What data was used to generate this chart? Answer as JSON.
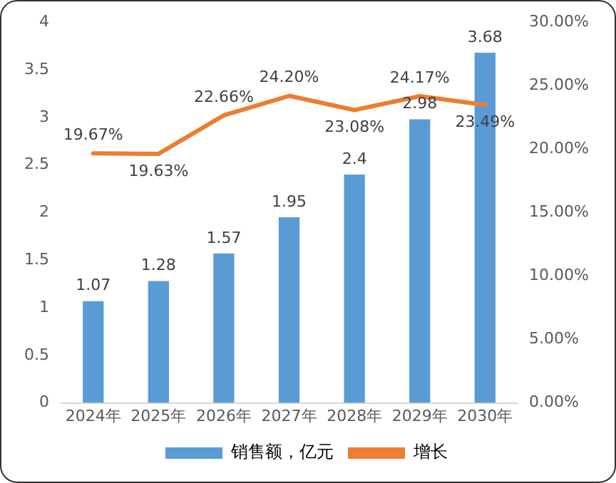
{
  "chart_data": {
    "type": "bar",
    "categories": [
      "2024年",
      "2025年",
      "2026年",
      "2027年",
      "2028年",
      "2029年",
      "2030年"
    ],
    "series": [
      {
        "name": "销售额，亿元",
        "color": "#5b9bd5",
        "values": [
          1.07,
          1.28,
          1.57,
          1.95,
          2.4,
          2.98,
          3.68
        ],
        "value_labels": [
          "1.07",
          "1.28",
          "1.57",
          "1.95",
          "2.4",
          "2.98",
          "3.68"
        ]
      },
      {
        "name": "增长",
        "type": "line",
        "axis": "y2",
        "color": "#ed7d31",
        "values": [
          19.67,
          19.63,
          22.66,
          24.2,
          23.08,
          24.17,
          23.49
        ],
        "value_labels": [
          "19.67%",
          "19.63%",
          "22.66%",
          "24.20%",
          "23.08%",
          "24.17%",
          "23.49%"
        ]
      }
    ],
    "ylim": [
      0,
      4
    ],
    "yticks": [
      0,
      0.5,
      1,
      1.5,
      2,
      2.5,
      3,
      3.5,
      4
    ],
    "y2lim": [
      0,
      30
    ],
    "y2ticks": [
      {
        "value": 0,
        "label": "0.00%"
      },
      {
        "value": 5,
        "label": "5.00%"
      },
      {
        "value": 10,
        "label": "10.00%"
      },
      {
        "value": 15,
        "label": "15.00%"
      },
      {
        "value": 20,
        "label": "20.00%"
      },
      {
        "value": 25,
        "label": "25.00%"
      },
      {
        "value": 30,
        "label": "30.00%"
      }
    ],
    "grid": false,
    "legend": "bottom",
    "marker": "none",
    "line_style": "solid"
  }
}
